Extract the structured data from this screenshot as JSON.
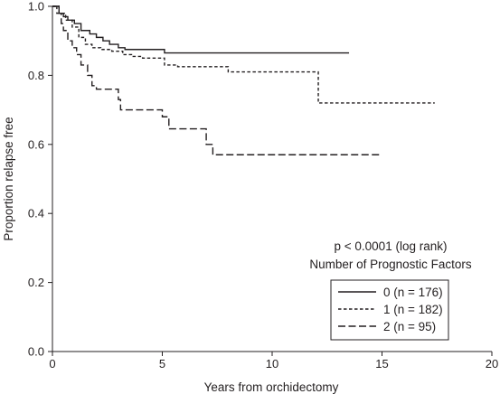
{
  "chart_data": {
    "type": "line",
    "step": true,
    "xlabel": "Years from orchidectomy",
    "ylabel": "Proportion relapse free",
    "xlim": [
      0,
      20
    ],
    "ylim": [
      0,
      1.0
    ],
    "xticks": [
      0,
      5,
      10,
      15,
      20
    ],
    "xtick_labels": [
      "0",
      "5",
      "10",
      "15",
      "20"
    ],
    "yticks": [
      0,
      0.2,
      0.4,
      0.6,
      0.8,
      1.0
    ],
    "ytick_labels": [
      "0.0",
      "0.2",
      "0.4",
      "0.6",
      "0.8",
      "1.0"
    ],
    "grid": false,
    "annotations": [
      "p < 0.0001 (log rank)",
      "Number of Prognostic Factors"
    ],
    "legend_position": "bottom-right",
    "series": [
      {
        "name": "0 (n = 176)",
        "dash": "solid",
        "x": [
          0,
          0.3,
          0.5,
          0.7,
          1.0,
          1.3,
          1.7,
          2.0,
          2.3,
          2.6,
          3.0,
          3.3,
          5.1,
          13.5
        ],
        "y": [
          1.0,
          0.98,
          0.97,
          0.96,
          0.95,
          0.93,
          0.92,
          0.91,
          0.9,
          0.89,
          0.88,
          0.875,
          0.865,
          0.865
        ]
      },
      {
        "name": "1 (n = 182)",
        "dash": "short",
        "x": [
          0,
          0.3,
          0.6,
          0.9,
          1.2,
          1.5,
          1.8,
          2.2,
          2.7,
          3.2,
          3.6,
          4.1,
          5.1,
          5.7,
          8.0,
          11.9,
          12.1,
          17.4
        ],
        "y": [
          1.0,
          0.98,
          0.96,
          0.94,
          0.91,
          0.89,
          0.88,
          0.875,
          0.87,
          0.86,
          0.855,
          0.85,
          0.83,
          0.825,
          0.81,
          0.81,
          0.72,
          0.72
        ]
      },
      {
        "name": "2 (n = 95)",
        "dash": "long",
        "x": [
          0,
          0.2,
          0.4,
          0.5,
          0.7,
          0.9,
          1.1,
          1.3,
          1.6,
          1.8,
          2.0,
          3.0,
          3.1,
          5.0,
          5.3,
          7.0,
          7.3,
          14.9
        ],
        "y": [
          1.0,
          0.98,
          0.95,
          0.93,
          0.9,
          0.88,
          0.86,
          0.83,
          0.8,
          0.77,
          0.76,
          0.73,
          0.7,
          0.68,
          0.645,
          0.6,
          0.57,
          0.57
        ]
      }
    ]
  }
}
